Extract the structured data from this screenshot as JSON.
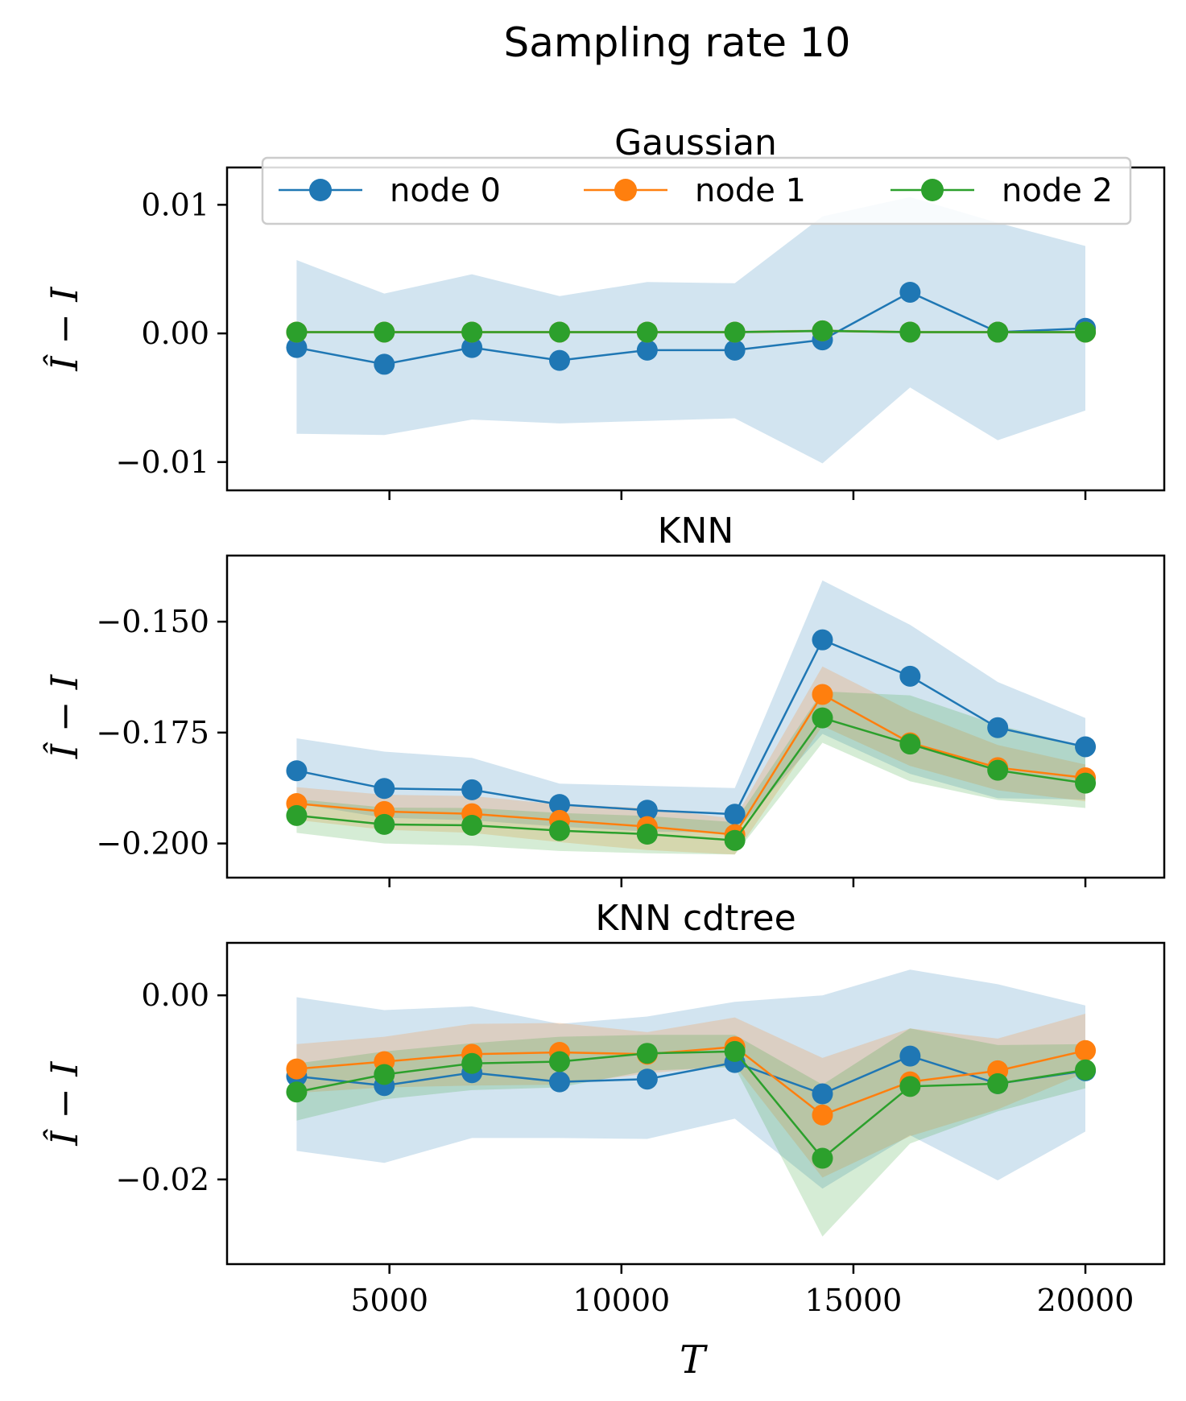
{
  "figure_title": "Sampling rate 10",
  "x_label": "T",
  "y_label": "Î − I",
  "legend": {
    "placement": "top (upper center of first panel)"
  },
  "colors": {
    "node 0": "#1f77b4",
    "node 1": "#ff7f0e",
    "node 2": "#2ca02c"
  },
  "chart_data": [
    {
      "type": "line",
      "title": "Gaussian",
      "xlabel": "",
      "ylabel": "Î − I",
      "xlim": [
        1500,
        21700
      ],
      "ylim": [
        -0.0122,
        0.0129
      ],
      "grid": false,
      "x": [
        3000,
        4889,
        6778,
        8667,
        10556,
        12444,
        14333,
        16222,
        18111,
        20000
      ],
      "xticks": [
        5000,
        10000,
        15000,
        20000
      ],
      "xticklabels": [
        "",
        "",
        "",
        ""
      ],
      "yticks": [
        0.01,
        0.0,
        -0.01
      ],
      "yticklabels": [
        "0.01",
        "0.00",
        "−0.01"
      ],
      "series": [
        {
          "name": "node 0",
          "color": "#1f77b4",
          "values": [
            -0.0011,
            -0.0024,
            -0.0011,
            -0.0021,
            -0.0013,
            -0.0013,
            -0.0005,
            0.0032,
            0.0001,
            0.0004
          ],
          "band_low": [
            -0.0078,
            -0.0079,
            -0.0067,
            -0.007,
            -0.0068,
            -0.0066,
            -0.0101,
            -0.0042,
            -0.0083,
            -0.006
          ],
          "band_high": [
            0.0057,
            0.0031,
            0.0046,
            0.0029,
            0.004,
            0.0039,
            0.0091,
            0.0106,
            0.0086,
            0.0068
          ]
        },
        {
          "name": "node 1",
          "color": "#ff7f0e",
          "values": [
            0.0001,
            0.0001,
            0.0001,
            0.0001,
            0.0001,
            0.0001,
            0.0002,
            0.0001,
            0.0001,
            0.0001
          ],
          "band_low": [
            0.0,
            0.0,
            0.0,
            0.0,
            0.0,
            0.0,
            0.0001,
            0.0,
            0.0,
            0.0
          ],
          "band_high": [
            0.0002,
            0.0002,
            0.0002,
            0.0002,
            0.0002,
            0.0002,
            0.0003,
            0.0002,
            0.0002,
            0.0002
          ]
        },
        {
          "name": "node 2",
          "color": "#2ca02c",
          "values": [
            0.0001,
            0.0001,
            0.0001,
            0.0001,
            0.0001,
            0.0001,
            0.0002,
            0.0001,
            0.0001,
            0.0001
          ],
          "band_low": [
            0.0,
            0.0,
            0.0,
            0.0,
            0.0,
            0.0,
            0.0001,
            0.0,
            0.0,
            0.0
          ],
          "band_high": [
            0.0002,
            0.0002,
            0.0002,
            0.0002,
            0.0002,
            0.0002,
            0.0003,
            0.0002,
            0.0002,
            0.0002
          ]
        }
      ]
    },
    {
      "type": "line",
      "title": "KNN",
      "xlabel": "",
      "ylabel": "Î − I",
      "xlim": [
        1500,
        21700
      ],
      "ylim": [
        -0.2077,
        -0.1351
      ],
      "grid": false,
      "x": [
        3000,
        4889,
        6778,
        8667,
        10556,
        12444,
        14333,
        16222,
        18111,
        20000
      ],
      "xticks": [
        5000,
        10000,
        15000,
        20000
      ],
      "xticklabels": [
        "",
        "",
        "",
        ""
      ],
      "yticks": [
        -0.15,
        -0.175,
        -0.2
      ],
      "yticklabels": [
        "−0.150",
        "−0.175",
        "−0.200"
      ],
      "series": [
        {
          "name": "node 0",
          "color": "#1f77b4",
          "values": [
            -0.1836,
            -0.1876,
            -0.1879,
            -0.1912,
            -0.1925,
            -0.1934,
            -0.1541,
            -0.1623,
            -0.1739,
            -0.1782
          ],
          "band_low": [
            -0.191,
            -0.1942,
            -0.1948,
            -0.1962,
            -0.1973,
            -0.1976,
            -0.1753,
            -0.1843,
            -0.1898,
            -0.1901
          ],
          "band_high": [
            -0.1763,
            -0.1793,
            -0.1807,
            -0.1865,
            -0.187,
            -0.1875,
            -0.1407,
            -0.1507,
            -0.1636,
            -0.1717
          ]
        },
        {
          "name": "node 1",
          "color": "#ff7f0e",
          "values": [
            -0.191,
            -0.1928,
            -0.1933,
            -0.1948,
            -0.1962,
            -0.198,
            -0.1664,
            -0.1773,
            -0.1829,
            -0.1852
          ],
          "band_low": [
            -0.1947,
            -0.1969,
            -0.1976,
            -0.1997,
            -0.2015,
            -0.2025,
            -0.1735,
            -0.1825,
            -0.188,
            -0.1905
          ],
          "band_high": [
            -0.1873,
            -0.189,
            -0.1893,
            -0.1912,
            -0.192,
            -0.1944,
            -0.1601,
            -0.1701,
            -0.1778,
            -0.1822
          ]
        },
        {
          "name": "node 2",
          "color": "#2ca02c",
          "values": [
            -0.1937,
            -0.1957,
            -0.1959,
            -0.1971,
            -0.1979,
            -0.1993,
            -0.1717,
            -0.1776,
            -0.1835,
            -0.1864
          ],
          "band_low": [
            -0.1976,
            -0.2,
            -0.2005,
            -0.2017,
            -0.2022,
            -0.2025,
            -0.1773,
            -0.186,
            -0.1902,
            -0.192
          ],
          "band_high": [
            -0.19,
            -0.1919,
            -0.192,
            -0.1931,
            -0.1938,
            -0.1952,
            -0.1657,
            -0.1666,
            -0.1733,
            -0.1781
          ]
        }
      ]
    },
    {
      "type": "line",
      "title": "KNN cdtree",
      "xlabel": "T",
      "ylabel": "Î − I",
      "xlim": [
        1500,
        21700
      ],
      "ylim": [
        -0.0292,
        0.0057
      ],
      "grid": false,
      "x": [
        3000,
        4889,
        6778,
        8667,
        10556,
        12444,
        14333,
        16222,
        18111,
        20000
      ],
      "xticks": [
        5000,
        10000,
        15000,
        20000
      ],
      "xticklabels": [
        "5000",
        "10000",
        "15000",
        "20000"
      ],
      "yticks": [
        0.0,
        -0.02
      ],
      "yticklabels": [
        "0.00",
        "−0.02"
      ],
      "series": [
        {
          "name": "node 0",
          "color": "#1f77b4",
          "values": [
            -0.0088,
            -0.0098,
            -0.0084,
            -0.0094,
            -0.0091,
            -0.0073,
            -0.0107,
            -0.0066,
            -0.0096,
            -0.0082
          ],
          "band_low": [
            -0.0169,
            -0.0182,
            -0.0155,
            -0.0155,
            -0.0156,
            -0.0134,
            -0.021,
            -0.0152,
            -0.0201,
            -0.0148
          ],
          "band_high": [
            -0.0002,
            -0.0016,
            -0.0012,
            -0.0031,
            -0.0023,
            -0.0007,
            0.0,
            0.0028,
            0.0012,
            -0.0011
          ]
        },
        {
          "name": "node 1",
          "color": "#ff7f0e",
          "values": [
            -0.008,
            -0.0072,
            -0.0064,
            -0.0062,
            -0.0064,
            -0.0056,
            -0.013,
            -0.0094,
            -0.0082,
            -0.006
          ],
          "band_low": [
            -0.0106,
            -0.01,
            -0.0098,
            -0.0097,
            -0.0085,
            -0.0076,
            -0.0198,
            -0.0153,
            -0.0124,
            -0.0084
          ],
          "band_high": [
            -0.0053,
            -0.0045,
            -0.0031,
            -0.003,
            -0.004,
            -0.0024,
            -0.0068,
            -0.0036,
            -0.0047,
            -0.002
          ]
        },
        {
          "name": "node 2",
          "color": "#2ca02c",
          "values": [
            -0.0105,
            -0.0086,
            -0.0074,
            -0.0072,
            -0.0063,
            -0.0061,
            -0.0177,
            -0.0099,
            -0.0096,
            -0.0081
          ],
          "band_low": [
            -0.0136,
            -0.0113,
            -0.0103,
            -0.01,
            -0.0082,
            -0.0078,
            -0.0262,
            -0.0161,
            -0.0126,
            -0.0101
          ],
          "band_high": [
            -0.0074,
            -0.0061,
            -0.0052,
            -0.0045,
            -0.0043,
            -0.0043,
            -0.0097,
            -0.0036,
            -0.0054,
            -0.0053
          ]
        }
      ]
    }
  ]
}
